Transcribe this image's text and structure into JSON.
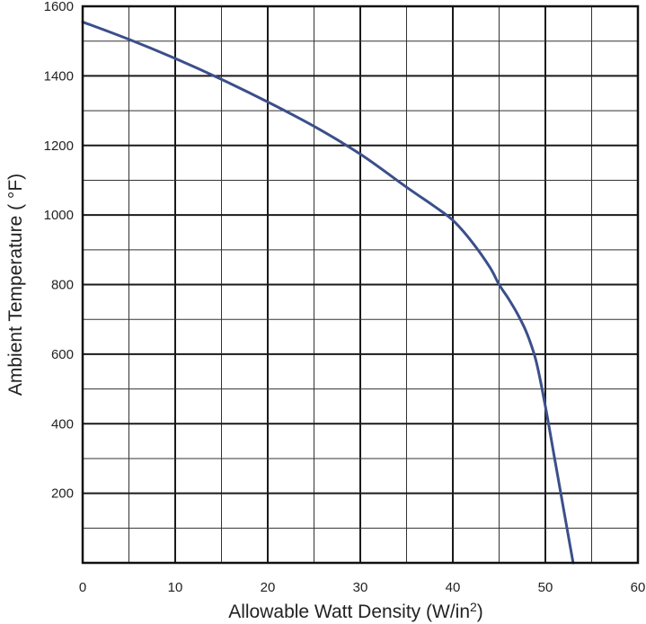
{
  "chart_data": {
    "type": "line",
    "title": "",
    "xlabel": "Allowable Watt Density (W/in",
    "xlabel_sup": "2",
    "xlabel_suffix": ")",
    "ylabel": "Ambient Temperature ( °F)",
    "xlim": [
      0,
      60
    ],
    "ylim": [
      0,
      1600
    ],
    "x_ticks": [
      0,
      10,
      20,
      30,
      40,
      50,
      60
    ],
    "x_tick_labels": [
      "0",
      "10",
      "20",
      "30",
      "40",
      "50",
      "60"
    ],
    "y_ticks": [
      200,
      400,
      600,
      800,
      1000,
      1200,
      1400,
      1600
    ],
    "y_tick_labels": [
      "200",
      "400",
      "600",
      "800",
      "1000",
      "1200",
      "1400",
      "1600"
    ],
    "x_minor_step": 5,
    "y_minor_step": 100,
    "grid": true,
    "series": [
      {
        "color": "#3b4f8a",
        "x": [
          0,
          5,
          10,
          15,
          20,
          25,
          30,
          35,
          38,
          40,
          42,
          44,
          45,
          46,
          47,
          48,
          49,
          50,
          51,
          52,
          53
        ],
        "y": [
          1555,
          1505,
          1450,
          1390,
          1325,
          1255,
          1175,
          1080,
          1025,
          985,
          925,
          850,
          800,
          760,
          715,
          660,
          580,
          450,
          300,
          150,
          0
        ]
      }
    ]
  }
}
